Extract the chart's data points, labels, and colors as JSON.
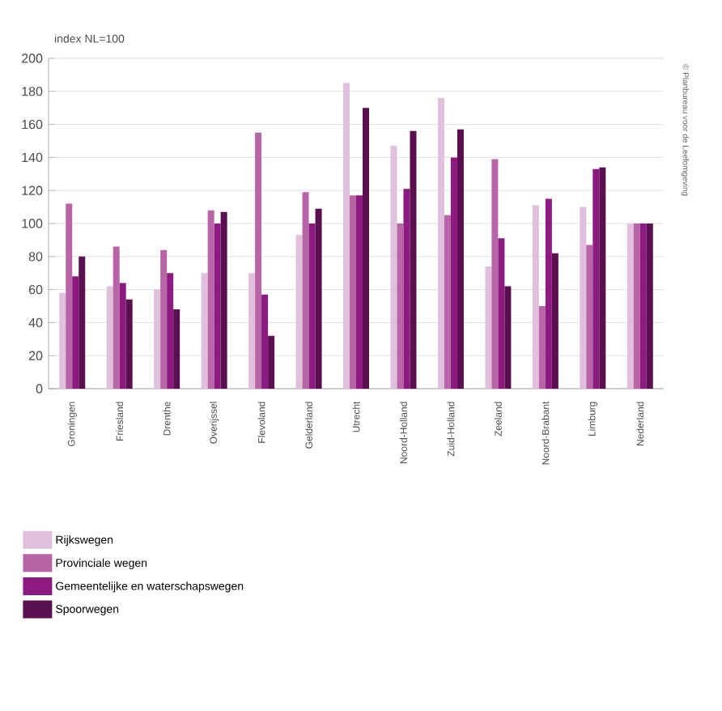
{
  "chart_data": {
    "type": "bar",
    "ylabel": "index NL=100",
    "categories": [
      "Groningen",
      "Friesland",
      "Drenthe",
      "Overijssel",
      "Flevoland",
      "Gelderland",
      "Utrecht",
      "Noord-Holland",
      "Zuid-Holland",
      "Zeeland",
      "Noord-Brabant",
      "Limburg",
      "Nederland"
    ],
    "series": [
      {
        "name": "Rijkswegen",
        "color": "#e0c0dc",
        "values": [
          58,
          62,
          60,
          70,
          70,
          93,
          185,
          147,
          176,
          74,
          111,
          110,
          100
        ]
      },
      {
        "name": "Provinciale wegen",
        "color": "#b865a8",
        "values": [
          112,
          86,
          84,
          108,
          155,
          119,
          117,
          100,
          105,
          139,
          50,
          87,
          100
        ]
      },
      {
        "name": "Gemeentelijke en waterschapswegen",
        "color": "#8c1a80",
        "values": [
          68,
          64,
          70,
          100,
          57,
          100,
          117,
          121,
          140,
          91,
          115,
          133,
          100
        ]
      },
      {
        "name": "Spoorwegen",
        "color": "#5a1050",
        "values": [
          80,
          54,
          48,
          107,
          32,
          109,
          170,
          156,
          157,
          62,
          82,
          134,
          100
        ]
      }
    ],
    "ylim": [
      0,
      200
    ],
    "yticks": [
      0,
      20,
      40,
      60,
      80,
      100,
      120,
      140,
      160,
      180,
      200
    ],
    "grid": "y",
    "legend": "bottom",
    "annotations": [
      "© Planbureau voor de Leefomgeving"
    ]
  }
}
